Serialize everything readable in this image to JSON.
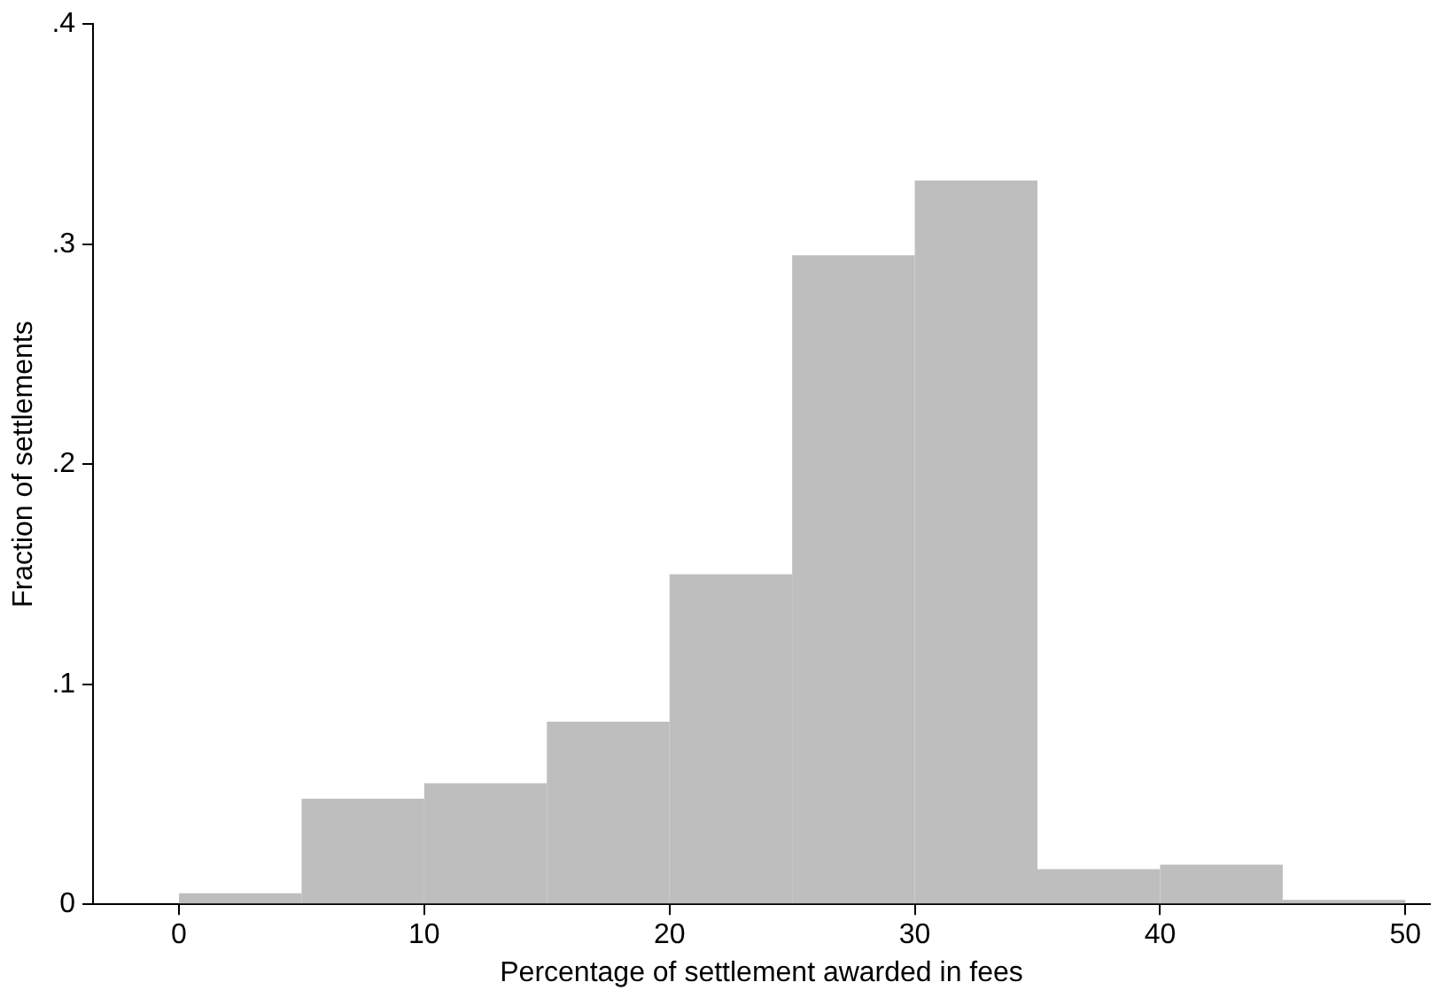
{
  "chart_data": {
    "type": "histogram",
    "xlabel": "Percentage of settlement awarded in fees",
    "ylabel": "Fraction of settlements",
    "bins": [
      0,
      5,
      10,
      15,
      20,
      25,
      30,
      35,
      40,
      45,
      50
    ],
    "values": [
      0.005,
      0.048,
      0.055,
      0.083,
      0.15,
      0.295,
      0.329,
      0.016,
      0.018,
      0.002
    ],
    "color": "#bebebe",
    "xlim": [
      -3.5,
      51
    ],
    "xticks": [
      0,
      10,
      20,
      30,
      40,
      50
    ],
    "ylim": [
      0,
      0.4
    ],
    "yticks": [
      0,
      {
        "value": 0.1,
        "label": ".1"
      },
      {
        "value": 0.2,
        "label": ".2"
      },
      {
        "value": 0.3,
        "label": ".3"
      },
      {
        "value": 0.4,
        "label": ".4"
      }
    ],
    "grid": false,
    "legend": false
  }
}
